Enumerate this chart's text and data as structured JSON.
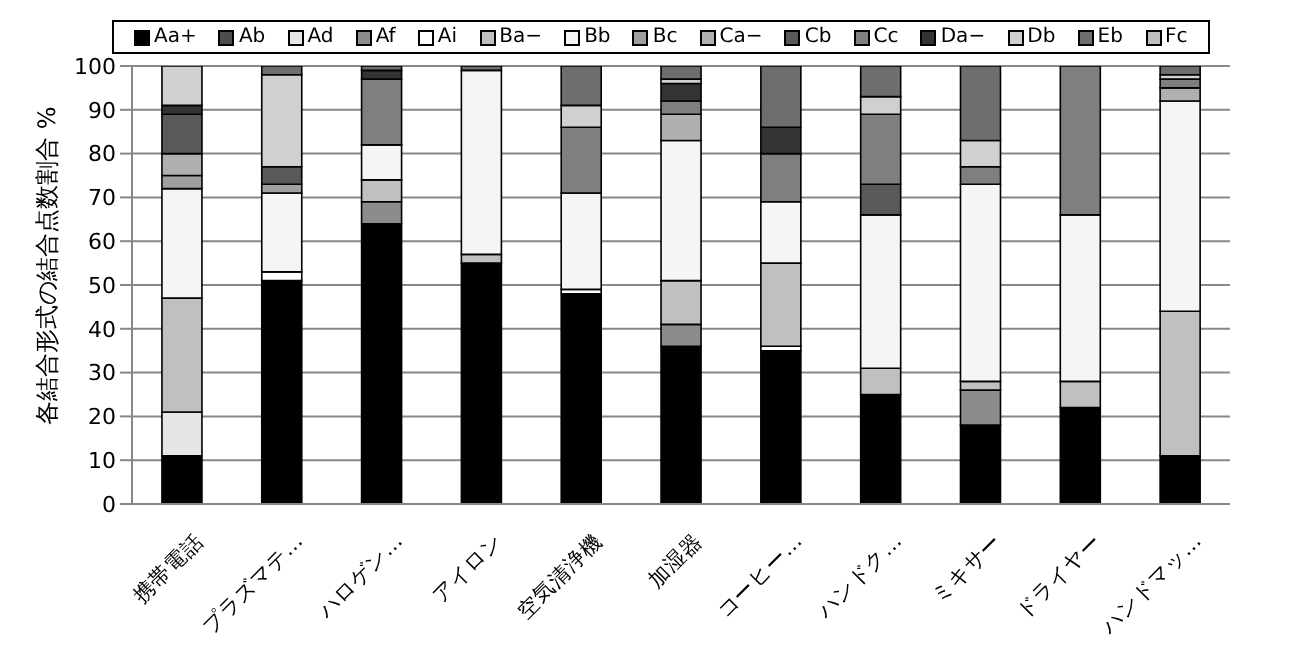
{
  "chart_data": {
    "type": "bar",
    "stacked": true,
    "ylabel": "各結合形式の結合点数割合 %",
    "categories": [
      "携帯電話",
      "プラズマテ…",
      "ハロゲン…",
      "アイロン",
      "空気清浄機",
      "加湿器",
      "コーヒー…",
      "ハンドク…",
      "ミキサー",
      "ドライヤー",
      "ハンドマッ…"
    ],
    "ylim": [
      0,
      100
    ],
    "yticks": [
      0,
      10,
      20,
      30,
      40,
      50,
      60,
      70,
      80,
      90,
      100
    ],
    "grid": "y",
    "legend": "top",
    "series": [
      {
        "name": "Aa+",
        "color": "#000000",
        "values": [
          11,
          51,
          64,
          55,
          48,
          36,
          35,
          25,
          18,
          22,
          11
        ]
      },
      {
        "name": "Ab",
        "color": "#4d4d4d",
        "values": [
          null,
          null,
          null,
          null,
          null,
          null,
          null,
          null,
          null,
          null,
          null
        ]
      },
      {
        "name": "Ad",
        "color": "#e6e6e6",
        "values": [
          10,
          null,
          null,
          null,
          null,
          null,
          null,
          null,
          null,
          null,
          null
        ]
      },
      {
        "name": "Af",
        "color": "#8c8c8c",
        "values": [
          null,
          null,
          5,
          null,
          null,
          5,
          null,
          null,
          8,
          null,
          null
        ]
      },
      {
        "name": "Ai",
        "color": "#ffffff",
        "values": [
          null,
          2,
          null,
          null,
          1,
          null,
          1,
          null,
          null,
          null,
          null
        ]
      },
      {
        "name": "Ba−",
        "color": "#c0c0c0",
        "values": [
          26,
          null,
          5,
          2,
          null,
          10,
          19,
          6,
          2,
          6,
          33
        ]
      },
      {
        "name": "Bb",
        "color": "#f5f5f5",
        "values": [
          25,
          18,
          8,
          42,
          22,
          32,
          14,
          35,
          45,
          38,
          48
        ]
      },
      {
        "name": "Bc",
        "color": "#a0a0a0",
        "values": [
          3,
          2,
          null,
          null,
          null,
          null,
          null,
          null,
          null,
          null,
          null
        ]
      },
      {
        "name": "Ca−",
        "color": "#b0b0b0",
        "values": [
          5,
          null,
          null,
          null,
          null,
          6,
          null,
          null,
          null,
          null,
          3
        ]
      },
      {
        "name": "Cb",
        "color": "#595959",
        "values": [
          9,
          4,
          null,
          null,
          null,
          null,
          null,
          7,
          null,
          null,
          null
        ]
      },
      {
        "name": "Cc",
        "color": "#7f7f7f",
        "values": [
          null,
          null,
          15,
          null,
          15,
          3,
          11,
          16,
          4,
          34,
          2
        ]
      },
      {
        "name": "Da−",
        "color": "#333333",
        "values": [
          2,
          null,
          2,
          null,
          null,
          4,
          6,
          null,
          null,
          null,
          null
        ]
      },
      {
        "name": "Db",
        "color": "#d0d0d0",
        "values": [
          9,
          21,
          null,
          null,
          5,
          1,
          null,
          4,
          6,
          null,
          1
        ]
      },
      {
        "name": "Eb",
        "color": "#6e6e6e",
        "values": [
          null,
          2,
          1,
          1,
          9,
          3,
          14,
          7,
          17,
          null,
          2
        ]
      },
      {
        "name": "Fc",
        "color": "#bfbfbf",
        "values": [
          null,
          null,
          null,
          null,
          null,
          null,
          null,
          null,
          null,
          null,
          null
        ]
      }
    ]
  }
}
